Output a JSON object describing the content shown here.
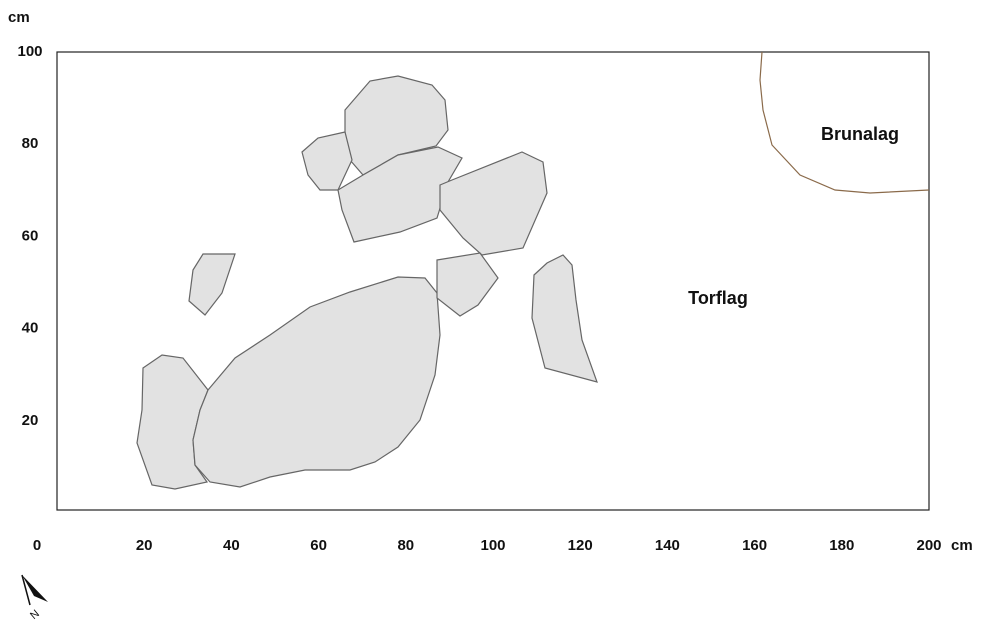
{
  "axes": {
    "x_unit": "cm",
    "y_unit": "cm",
    "xticks": [
      0,
      20,
      40,
      60,
      80,
      100,
      120,
      140,
      160,
      180,
      200
    ],
    "yticks": [
      20,
      40,
      60,
      80,
      100
    ]
  },
  "labels": {
    "torflag": "Torflag",
    "brunalag": "Brunalag",
    "north": "N"
  }
}
